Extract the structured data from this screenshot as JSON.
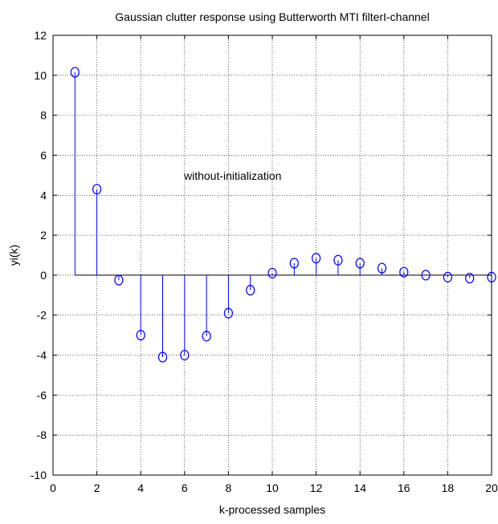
{
  "chart_data": {
    "type": "stem",
    "title": "Gaussian clutter response using Butterworth MTI filterI-channel",
    "xlabel": "k-processed samples",
    "ylabel": "yi(k)",
    "annotation": "without-initialization",
    "xlim": [
      0,
      20
    ],
    "ylim": [
      -10,
      12
    ],
    "grid": true,
    "x_ticks": [
      0,
      2,
      4,
      6,
      8,
      10,
      12,
      14,
      16,
      18,
      20
    ],
    "y_ticks": [
      12,
      10,
      8,
      6,
      4,
      2,
      0,
      -2,
      -4,
      -6,
      -8,
      -10
    ],
    "series": [
      {
        "marker": "circle",
        "color": "#0000ff",
        "x": [
          1,
          2,
          3,
          4,
          5,
          6,
          7,
          8,
          9,
          10,
          11,
          12,
          13,
          14,
          15,
          16,
          17,
          18,
          19,
          20
        ],
        "values": [
          10.15,
          4.3,
          -0.25,
          -3.0,
          -4.1,
          -4.0,
          -3.05,
          -1.9,
          -0.75,
          0.1,
          0.6,
          0.85,
          0.75,
          0.6,
          0.35,
          0.15,
          0.0,
          -0.1,
          -0.15,
          -0.1
        ]
      }
    ]
  }
}
